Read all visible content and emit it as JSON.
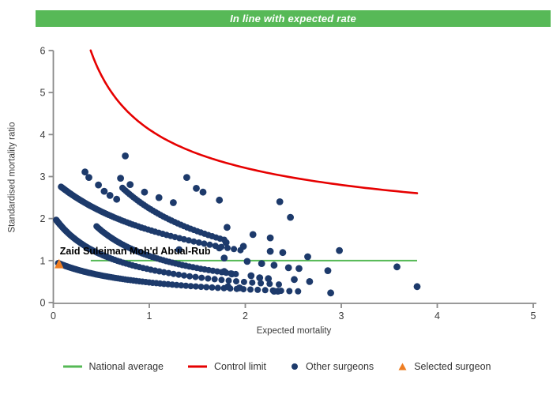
{
  "banner": {
    "text": "In line with expected rate",
    "bg_color": "#57b957",
    "text_color": "#ffffff"
  },
  "chart_data": {
    "type": "scatter",
    "title": "",
    "xlabel": "Expected mortality",
    "ylabel": "Standardised mortality ratio",
    "xlim": [
      0,
      5
    ],
    "ylim": [
      0,
      6
    ],
    "x_ticks": [
      0,
      1,
      2,
      3,
      4,
      5
    ],
    "y_ticks": [
      0,
      1,
      2,
      3,
      4,
      5,
      6
    ],
    "grid": "off",
    "axis_color": "#8b8b8b",
    "tick_label_color": "#3c3c3c",
    "national_average": {
      "y": 1.0,
      "x_start": 0.39,
      "x_end": 3.79,
      "color": "#55b955"
    },
    "control_limit": {
      "formula": "y = 1 + 3.12 / sqrt(x)",
      "a": 3.12,
      "b": 1.0,
      "x_start": 0.389,
      "x_end": 3.79,
      "color": "#e60000"
    },
    "other_surgeons": {
      "color": "#1d3a6b",
      "dot_arcs": [
        {
          "k": 0.93,
          "a": 0.94,
          "x_start": 0.05,
          "x_end": 2.55,
          "count": 110
        },
        {
          "k": 1.28,
          "a": 0.62,
          "x_start": 0.03,
          "x_end": 2.35,
          "count": 105
        },
        {
          "k": 4.26,
          "a": 1.465,
          "x_start": 0.08,
          "x_end": 1.95,
          "count": 90
        },
        {
          "k": 1.573,
          "a": 0.417,
          "x_start": 0.45,
          "x_end": 1.9,
          "count": 55
        },
        {
          "k": 3.5,
          "a": 0.562,
          "x_start": 0.72,
          "x_end": 1.78,
          "count": 38
        }
      ],
      "points": [
        [
          0.33,
          3.11
        ],
        [
          0.37,
          2.98
        ],
        [
          0.47,
          2.8
        ],
        [
          0.53,
          2.65
        ],
        [
          0.59,
          2.55
        ],
        [
          0.66,
          2.46
        ],
        [
          0.7,
          2.96
        ],
        [
          0.8,
          2.81
        ],
        [
          0.95,
          2.63
        ],
        [
          1.1,
          2.5
        ],
        [
          1.25,
          2.38
        ],
        [
          0.75,
          3.49
        ],
        [
          1.39,
          2.98
        ],
        [
          1.49,
          2.72
        ],
        [
          1.56,
          2.63
        ],
        [
          1.73,
          2.44
        ],
        [
          1.31,
          1.26
        ],
        [
          2.36,
          2.4
        ],
        [
          2.47,
          2.03
        ],
        [
          1.81,
          1.79
        ],
        [
          2.08,
          1.62
        ],
        [
          2.26,
          1.54
        ],
        [
          1.8,
          1.43
        ],
        [
          1.98,
          1.34
        ],
        [
          1.73,
          1.3
        ],
        [
          2.26,
          1.22
        ],
        [
          2.39,
          1.19
        ],
        [
          2.98,
          1.24
        ],
        [
          1.78,
          1.06
        ],
        [
          2.65,
          1.09
        ],
        [
          2.02,
          0.98
        ],
        [
          2.17,
          0.93
        ],
        [
          2.3,
          0.89
        ],
        [
          2.45,
          0.83
        ],
        [
          2.56,
          0.81
        ],
        [
          2.86,
          0.76
        ],
        [
          1.78,
          0.74
        ],
        [
          1.86,
          0.68
        ],
        [
          2.06,
          0.64
        ],
        [
          2.15,
          0.59
        ],
        [
          2.24,
          0.57
        ],
        [
          2.51,
          0.55
        ],
        [
          2.67,
          0.5
        ],
        [
          1.82,
          0.38
        ],
        [
          1.94,
          0.35
        ],
        [
          2.3,
          0.27
        ],
        [
          2.34,
          0.27
        ],
        [
          2.89,
          0.23
        ],
        [
          3.58,
          0.85
        ],
        [
          3.79,
          0.38
        ]
      ]
    },
    "selected_surgeon": {
      "label": "Zaid Suleiman Moh'd Abual-Rub",
      "x": 0.06,
      "y": 0.92,
      "color": "#ee7d22",
      "label_color": "#000000"
    },
    "legend_position": "bottom"
  },
  "legend": {
    "items": [
      {
        "label": "National average",
        "marker": "line",
        "color": "#55b955"
      },
      {
        "label": "Control limit",
        "marker": "line",
        "color": "#e60000"
      },
      {
        "label": "Other surgeons",
        "marker": "dot",
        "color": "#1d3a6b"
      },
      {
        "label": "Selected surgeon",
        "marker": "triangle",
        "color": "#ee7d22"
      }
    ]
  }
}
